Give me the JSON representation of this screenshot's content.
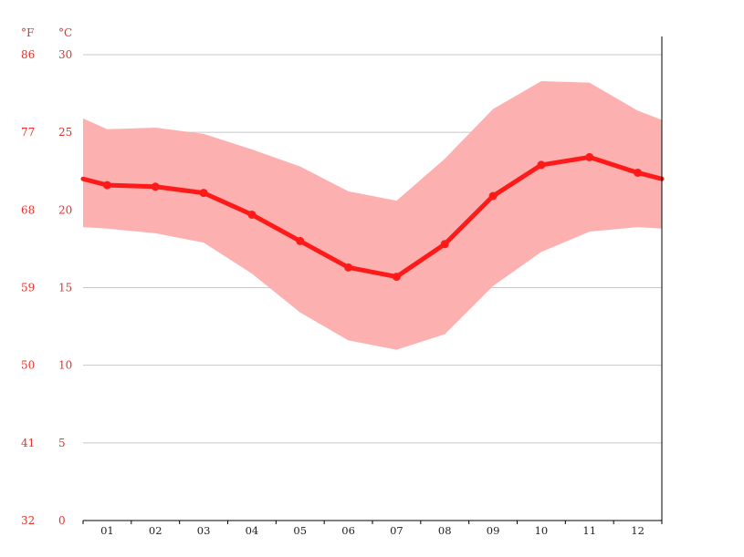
{
  "colors": {
    "axis_text": "#e8302a",
    "grid": "#c8c8c8",
    "band": "#fdb0b0",
    "line": "#ff1a1a",
    "axis_line": "#000000"
  },
  "units": {
    "fahrenheit": "°F",
    "celsius": "°C"
  },
  "chart_data": {
    "type": "line",
    "title": "",
    "xlabel": "",
    "ylabel": "",
    "categories": [
      "01",
      "02",
      "03",
      "04",
      "05",
      "06",
      "07",
      "08",
      "09",
      "10",
      "11",
      "12"
    ],
    "ylim": [
      0,
      30
    ],
    "y_ticks_c": [
      "0",
      "5",
      "10",
      "15",
      "20",
      "25",
      "30"
    ],
    "y_ticks_f": [
      "32",
      "41",
      "50",
      "59",
      "68",
      "77",
      "86"
    ],
    "grid": true,
    "series": [
      {
        "kind": "line",
        "values": [
          21.6,
          21.5,
          21.1,
          19.7,
          18.0,
          16.3,
          15.7,
          17.8,
          20.9,
          22.9,
          23.4,
          22.4
        ]
      },
      {
        "kind": "band-upper",
        "values": [
          25.2,
          25.3,
          24.9,
          23.9,
          22.8,
          21.2,
          20.6,
          23.3,
          26.5,
          28.3,
          28.2,
          26.4
        ]
      },
      {
        "kind": "band-lower",
        "values": [
          18.8,
          18.5,
          17.9,
          15.9,
          13.4,
          11.6,
          11.0,
          12.0,
          15.1,
          17.3,
          18.6,
          18.9
        ]
      }
    ],
    "edge_values": {
      "line": {
        "start": 22.0,
        "end": 22.0
      },
      "band-upper": {
        "start": 25.9,
        "end": 25.8
      },
      "band-lower": {
        "start": 18.9,
        "end": 18.8
      }
    }
  }
}
